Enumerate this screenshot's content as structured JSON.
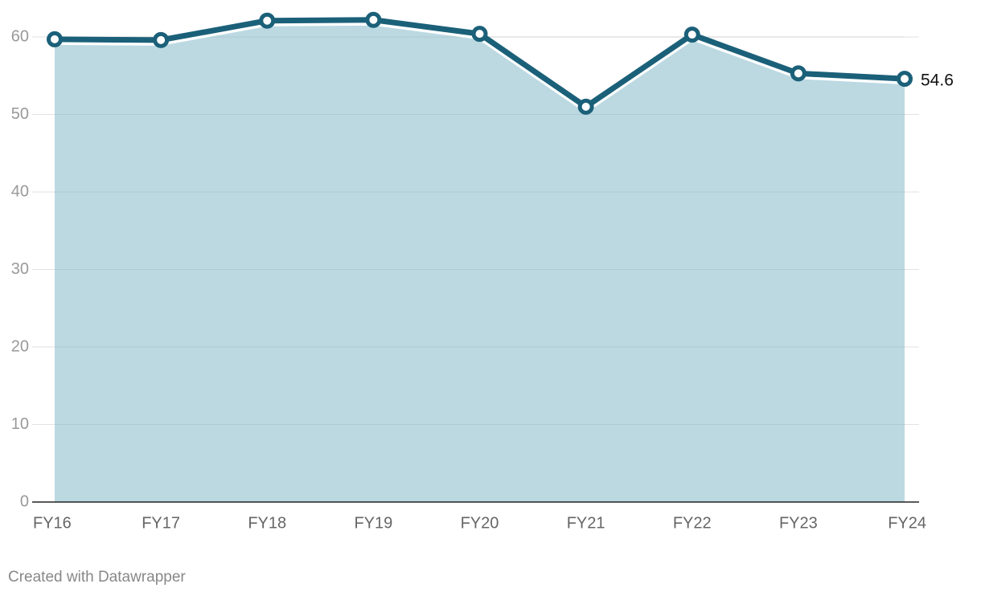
{
  "chart_data": {
    "type": "area",
    "categories": [
      "FY16",
      "FY17",
      "FY18",
      "FY19",
      "FY20",
      "FY21",
      "FY22",
      "FY23",
      "FY24"
    ],
    "values": [
      59.7,
      59.6,
      62.1,
      62.2,
      60.4,
      51.0,
      60.3,
      55.3,
      54.6
    ],
    "color": "#1b6079",
    "fill_color": "#bcd9e2",
    "ylim": [
      0,
      60
    ],
    "yticks": [
      0,
      10,
      20,
      30,
      40,
      50,
      60
    ],
    "grid": true,
    "credit": "Created with Datawrapper"
  }
}
